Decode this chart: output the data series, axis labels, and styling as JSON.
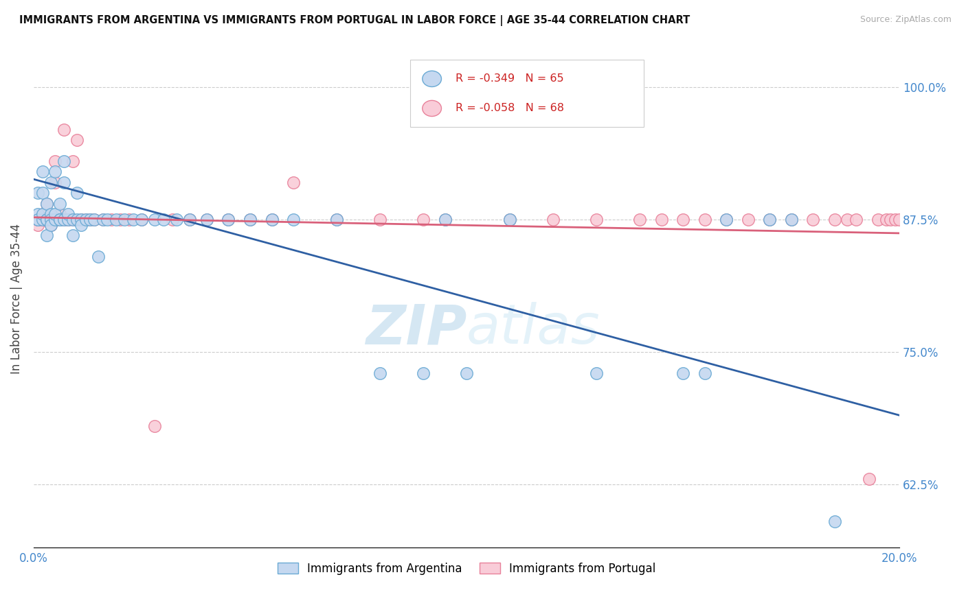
{
  "title": "IMMIGRANTS FROM ARGENTINA VS IMMIGRANTS FROM PORTUGAL IN LABOR FORCE | AGE 35-44 CORRELATION CHART",
  "source": "Source: ZipAtlas.com",
  "ylabel": "In Labor Force | Age 35-44",
  "xlim": [
    0.0,
    0.2
  ],
  "ylim": [
    0.565,
    1.035
  ],
  "yticks": [
    0.625,
    0.75,
    0.875,
    1.0
  ],
  "ytick_labels": [
    "62.5%",
    "75.0%",
    "87.5%",
    "100.0%"
  ],
  "xticks": [
    0.0,
    0.05,
    0.1,
    0.15,
    0.2
  ],
  "xtick_labels": [
    "0.0%",
    "",
    "",
    "",
    "20.0%"
  ],
  "legend_argentina": "R = -0.349   N = 65",
  "legend_portugal": "R = -0.058   N = 68",
  "color_argentina": "#c5d8f0",
  "color_portugal": "#f9ccd8",
  "edge_argentina": "#6aaad4",
  "edge_portugal": "#e8819a",
  "line_argentina": "#2e5fa3",
  "line_portugal": "#d9607a",
  "watermark": "ZIPatlas",
  "argentina_x": [
    0.001,
    0.001,
    0.001,
    0.001,
    0.002,
    0.002,
    0.002,
    0.002,
    0.003,
    0.003,
    0.003,
    0.003,
    0.004,
    0.004,
    0.004,
    0.004,
    0.005,
    0.005,
    0.005,
    0.006,
    0.006,
    0.006,
    0.007,
    0.007,
    0.007,
    0.008,
    0.008,
    0.009,
    0.009,
    0.01,
    0.01,
    0.011,
    0.011,
    0.012,
    0.013,
    0.014,
    0.015,
    0.016,
    0.017,
    0.019,
    0.021,
    0.023,
    0.025,
    0.028,
    0.03,
    0.033,
    0.036,
    0.04,
    0.045,
    0.05,
    0.055,
    0.06,
    0.07,
    0.08,
    0.09,
    0.095,
    0.1,
    0.11,
    0.13,
    0.15,
    0.155,
    0.16,
    0.17,
    0.175,
    0.185
  ],
  "argentina_y": [
    0.875,
    0.9,
    0.88,
    0.875,
    0.92,
    0.875,
    0.9,
    0.88,
    0.875,
    0.89,
    0.875,
    0.86,
    0.88,
    0.91,
    0.875,
    0.87,
    0.875,
    0.88,
    0.92,
    0.875,
    0.89,
    0.875,
    0.875,
    0.91,
    0.93,
    0.875,
    0.88,
    0.875,
    0.86,
    0.875,
    0.9,
    0.875,
    0.87,
    0.875,
    0.875,
    0.875,
    0.84,
    0.875,
    0.875,
    0.875,
    0.875,
    0.875,
    0.875,
    0.875,
    0.875,
    0.875,
    0.875,
    0.875,
    0.875,
    0.875,
    0.875,
    0.875,
    0.875,
    0.73,
    0.73,
    0.875,
    0.73,
    0.875,
    0.73,
    0.73,
    0.73,
    0.875,
    0.875,
    0.875,
    0.59
  ],
  "portugal_x": [
    0.001,
    0.001,
    0.001,
    0.002,
    0.002,
    0.002,
    0.003,
    0.003,
    0.003,
    0.004,
    0.004,
    0.004,
    0.005,
    0.005,
    0.005,
    0.006,
    0.006,
    0.006,
    0.007,
    0.007,
    0.008,
    0.008,
    0.009,
    0.009,
    0.01,
    0.011,
    0.012,
    0.013,
    0.014,
    0.016,
    0.018,
    0.02,
    0.022,
    0.025,
    0.028,
    0.032,
    0.036,
    0.04,
    0.045,
    0.05,
    0.055,
    0.06,
    0.07,
    0.08,
    0.09,
    0.095,
    0.1,
    0.11,
    0.12,
    0.13,
    0.14,
    0.145,
    0.15,
    0.155,
    0.16,
    0.165,
    0.17,
    0.175,
    0.18,
    0.185,
    0.188,
    0.19,
    0.193,
    0.195,
    0.197,
    0.198,
    0.199,
    0.2
  ],
  "portugal_y": [
    0.875,
    0.87,
    0.875,
    0.875,
    0.88,
    0.875,
    0.875,
    0.89,
    0.875,
    0.875,
    0.87,
    0.875,
    0.875,
    0.91,
    0.93,
    0.875,
    0.88,
    0.875,
    0.875,
    0.96,
    0.875,
    0.875,
    0.875,
    0.93,
    0.95,
    0.875,
    0.875,
    0.875,
    0.875,
    0.875,
    0.875,
    0.875,
    0.875,
    0.875,
    0.68,
    0.875,
    0.875,
    0.875,
    0.875,
    0.875,
    0.875,
    0.91,
    0.875,
    0.875,
    0.875,
    0.875,
    1.0,
    0.875,
    0.875,
    0.875,
    0.875,
    0.875,
    0.875,
    0.875,
    0.875,
    0.875,
    0.875,
    0.875,
    0.875,
    0.875,
    0.875,
    0.875,
    0.63,
    0.875,
    0.875,
    0.875,
    0.875,
    0.875
  ]
}
